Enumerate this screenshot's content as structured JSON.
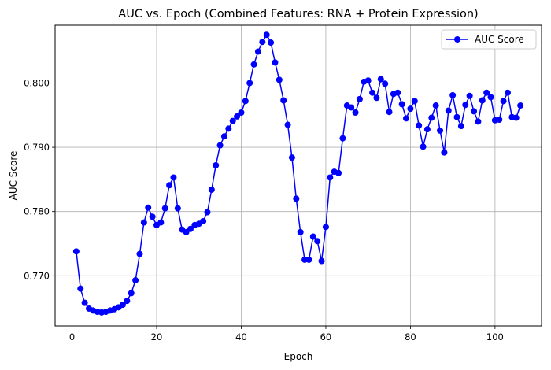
{
  "chart_data": {
    "type": "line",
    "title": "AUC vs. Epoch (Combined Features: RNA + Protein Expression)",
    "xlabel": "Epoch",
    "ylabel": "AUC Score",
    "xlim": [
      -4,
      111
    ],
    "ylim": [
      0.7622,
      0.809
    ],
    "xticks": [
      0,
      20,
      40,
      60,
      80,
      100
    ],
    "yticks": [
      0.77,
      0.78,
      0.79,
      0.8
    ],
    "xtick_labels": [
      "0",
      "20",
      "40",
      "60",
      "80",
      "100"
    ],
    "ytick_labels": [
      "0.770",
      "0.780",
      "0.790",
      "0.800"
    ],
    "grid": true,
    "legend_position": "top-right",
    "series": [
      {
        "name": "AUC Score",
        "color": "#0000ff",
        "marker": "circle",
        "x": [
          1,
          2,
          3,
          4,
          5,
          6,
          7,
          8,
          9,
          10,
          11,
          12,
          13,
          14,
          15,
          16,
          17,
          18,
          19,
          20,
          21,
          22,
          23,
          24,
          25,
          26,
          27,
          28,
          29,
          30,
          31,
          32,
          33,
          34,
          35,
          36,
          37,
          38,
          39,
          40,
          41,
          42,
          43,
          44,
          45,
          46,
          47,
          48,
          49,
          50,
          51,
          52,
          53,
          54,
          55,
          56,
          57,
          58,
          59,
          60,
          61,
          62,
          63,
          64,
          65,
          66,
          67,
          68,
          69,
          70,
          71,
          72,
          73,
          74,
          75,
          76,
          77,
          78,
          79,
          80,
          81,
          82,
          83,
          84,
          85,
          86,
          87,
          88,
          89,
          90,
          91,
          92,
          93,
          94,
          95,
          96,
          97,
          98,
          99,
          100,
          101,
          102,
          103,
          104,
          105,
          106
        ],
        "y": [
          0.7738,
          0.768,
          0.7658,
          0.7649,
          0.7646,
          0.7644,
          0.7643,
          0.7644,
          0.7646,
          0.7648,
          0.7651,
          0.7655,
          0.7661,
          0.7673,
          0.7693,
          0.7734,
          0.7783,
          0.7806,
          0.7792,
          0.7779,
          0.7783,
          0.7805,
          0.7841,
          0.7853,
          0.7805,
          0.7772,
          0.7768,
          0.7773,
          0.7779,
          0.7781,
          0.7785,
          0.7799,
          0.7834,
          0.7872,
          0.7903,
          0.7917,
          0.7929,
          0.7941,
          0.7948,
          0.7954,
          0.7972,
          0.8,
          0.8029,
          0.8049,
          0.8064,
          0.8075,
          0.8063,
          0.8032,
          0.8005,
          0.7973,
          0.7935,
          0.7884,
          0.782,
          0.7768,
          0.7725,
          0.7725,
          0.7761,
          0.7754,
          0.7723,
          0.7776,
          0.7853,
          0.7862,
          0.786,
          0.7914,
          0.7965,
          0.7962,
          0.7954,
          0.7975,
          0.8002,
          0.8004,
          0.7985,
          0.7977,
          0.8006,
          0.7999,
          0.7955,
          0.7983,
          0.7985,
          0.7967,
          0.7945,
          0.796,
          0.7972,
          0.7934,
          0.7901,
          0.7928,
          0.7946,
          0.7965,
          0.7926,
          0.7892,
          0.7957,
          0.7981,
          0.7947,
          0.7933,
          0.7966,
          0.798,
          0.7956,
          0.794,
          0.7973,
          0.7985,
          0.7978,
          0.7942,
          0.7943,
          0.7972,
          0.7985,
          0.7947,
          0.7946,
          0.7965
        ]
      }
    ]
  }
}
